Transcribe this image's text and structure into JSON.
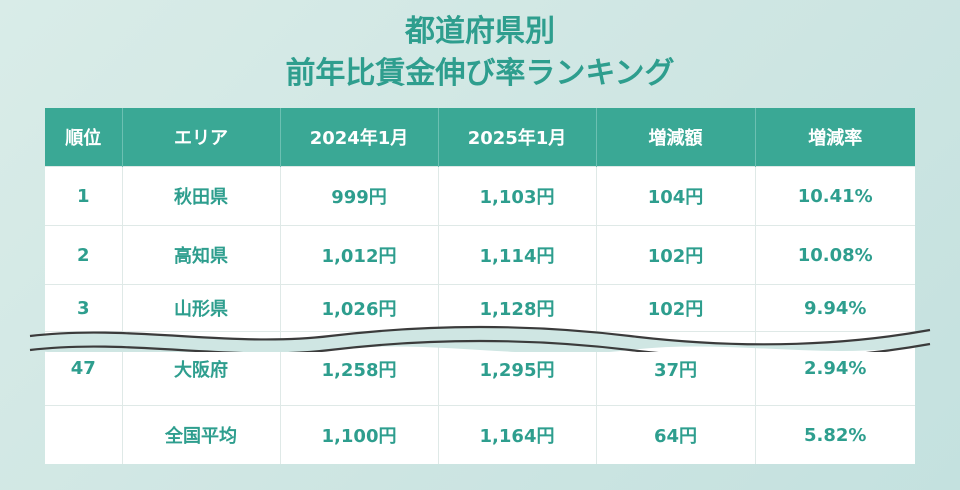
{
  "title": {
    "line1": "都道府県別",
    "line2": "前年比賃金伸び率ランキング"
  },
  "table": {
    "headers": [
      "順位",
      "エリア",
      "2024年1月",
      "2025年1月",
      "増減額",
      "増減率"
    ],
    "rows": [
      [
        "1",
        "秋田県",
        "999円",
        "1,103円",
        "104円",
        "10.41%"
      ],
      [
        "2",
        "高知県",
        "1,012円",
        "1,114円",
        "102円",
        "10.08%"
      ],
      [
        "3",
        "山形県",
        "1,026円",
        "1,128円",
        "102円",
        "9.94%"
      ],
      [
        "47",
        "大阪府",
        "1,258円",
        "1,295円",
        "37円",
        "2.94%"
      ],
      [
        "",
        "全国平均",
        "1,100円",
        "1,164円",
        "64円",
        "5.82%"
      ]
    ]
  },
  "colors": {
    "accent": "#3aa895",
    "text": "#2e9e8e",
    "background": "#cfe6e3"
  }
}
